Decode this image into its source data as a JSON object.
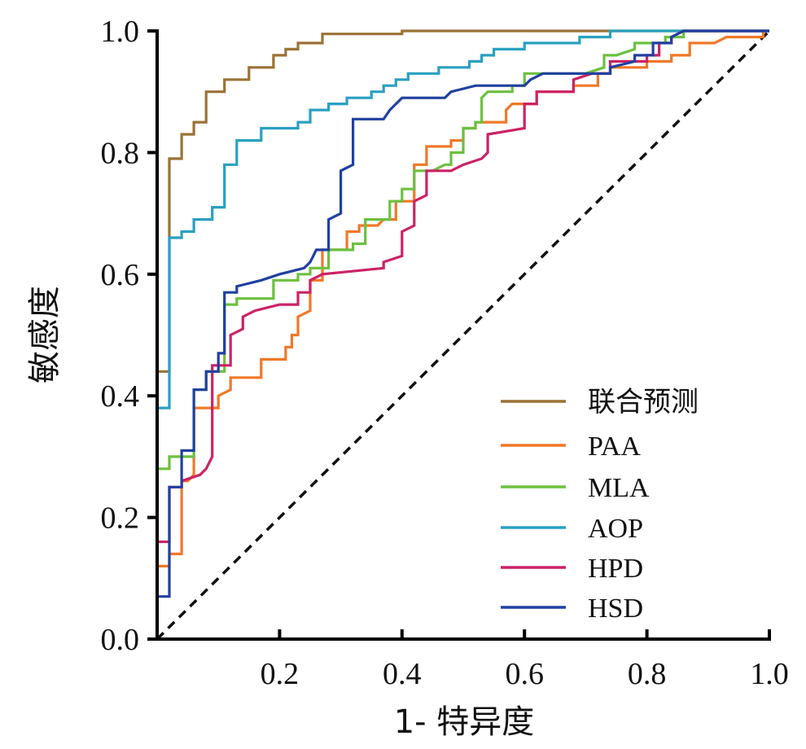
{
  "chart_data": {
    "type": "line",
    "title": "",
    "xlabel": "1- 特异度",
    "ylabel": "敏感度",
    "xlim": [
      0,
      1
    ],
    "ylim": [
      0,
      1
    ],
    "x_ticks": [
      "0.2",
      "0.4",
      "0.6",
      "0.8",
      "1.0"
    ],
    "y_ticks": [
      "0.0",
      "0.2",
      "0.4",
      "0.6",
      "0.8",
      "1.0"
    ],
    "grid": false,
    "legend_position": "bottom-right",
    "reference_line": {
      "style": "dashed",
      "color": "#111111",
      "points": [
        [
          0,
          0
        ],
        [
          1,
          1
        ]
      ]
    },
    "series": [
      {
        "name": "联合预测",
        "color": "#9a7236",
        "points": [
          [
            0,
            0
          ],
          [
            0,
            0.44
          ],
          [
            0.02,
            0.44
          ],
          [
            0.02,
            0.79
          ],
          [
            0.04,
            0.79
          ],
          [
            0.04,
            0.83
          ],
          [
            0.06,
            0.83
          ],
          [
            0.06,
            0.85
          ],
          [
            0.08,
            0.85
          ],
          [
            0.08,
            0.9
          ],
          [
            0.11,
            0.9
          ],
          [
            0.11,
            0.92
          ],
          [
            0.15,
            0.92
          ],
          [
            0.15,
            0.94
          ],
          [
            0.19,
            0.94
          ],
          [
            0.19,
            0.96
          ],
          [
            0.21,
            0.96
          ],
          [
            0.21,
            0.97
          ],
          [
            0.23,
            0.97
          ],
          [
            0.23,
            0.98
          ],
          [
            0.27,
            0.98
          ],
          [
            0.27,
            0.995
          ],
          [
            0.4,
            0.995
          ],
          [
            0.4,
            1
          ],
          [
            1,
            1
          ]
        ]
      },
      {
        "name": "PAA",
        "color": "#f07828",
        "points": [
          [
            0,
            0
          ],
          [
            0,
            0.12
          ],
          [
            0.02,
            0.12
          ],
          [
            0.02,
            0.14
          ],
          [
            0.04,
            0.14
          ],
          [
            0.04,
            0.26
          ],
          [
            0.05,
            0.26
          ],
          [
            0.06,
            0.27
          ],
          [
            0.06,
            0.38
          ],
          [
            0.1,
            0.38
          ],
          [
            0.1,
            0.4
          ],
          [
            0.12,
            0.41
          ],
          [
            0.12,
            0.43
          ],
          [
            0.17,
            0.43
          ],
          [
            0.17,
            0.46
          ],
          [
            0.21,
            0.46
          ],
          [
            0.21,
            0.48
          ],
          [
            0.22,
            0.48
          ],
          [
            0.22,
            0.5
          ],
          [
            0.23,
            0.5
          ],
          [
            0.23,
            0.53
          ],
          [
            0.25,
            0.54
          ],
          [
            0.25,
            0.59
          ],
          [
            0.27,
            0.59
          ],
          [
            0.27,
            0.64
          ],
          [
            0.31,
            0.64
          ],
          [
            0.31,
            0.67
          ],
          [
            0.33,
            0.67
          ],
          [
            0.33,
            0.68
          ],
          [
            0.36,
            0.68
          ],
          [
            0.37,
            0.69
          ],
          [
            0.39,
            0.69
          ],
          [
            0.39,
            0.72
          ],
          [
            0.42,
            0.72
          ],
          [
            0.42,
            0.78
          ],
          [
            0.44,
            0.78
          ],
          [
            0.44,
            0.81
          ],
          [
            0.48,
            0.81
          ],
          [
            0.48,
            0.82
          ],
          [
            0.5,
            0.82
          ],
          [
            0.5,
            0.84
          ],
          [
            0.52,
            0.84
          ],
          [
            0.52,
            0.85
          ],
          [
            0.57,
            0.85
          ],
          [
            0.57,
            0.87
          ],
          [
            0.58,
            0.88
          ],
          [
            0.62,
            0.88
          ],
          [
            0.62,
            0.9
          ],
          [
            0.68,
            0.9
          ],
          [
            0.68,
            0.91
          ],
          [
            0.72,
            0.91
          ],
          [
            0.72,
            0.93
          ],
          [
            0.74,
            0.93
          ],
          [
            0.74,
            0.94
          ],
          [
            0.8,
            0.94
          ],
          [
            0.8,
            0.95
          ],
          [
            0.84,
            0.95
          ],
          [
            0.84,
            0.96
          ],
          [
            0.87,
            0.96
          ],
          [
            0.87,
            0.98
          ],
          [
            0.91,
            0.98
          ],
          [
            0.93,
            0.99
          ],
          [
            0.99,
            0.99
          ],
          [
            0.99,
            1
          ],
          [
            1,
            1
          ]
        ]
      },
      {
        "name": "MLA",
        "color": "#6cc040",
        "points": [
          [
            0,
            0
          ],
          [
            0,
            0.28
          ],
          [
            0.02,
            0.28
          ],
          [
            0.02,
            0.3
          ],
          [
            0.06,
            0.3
          ],
          [
            0.06,
            0.41
          ],
          [
            0.08,
            0.41
          ],
          [
            0.08,
            0.44
          ],
          [
            0.11,
            0.44
          ],
          [
            0.11,
            0.55
          ],
          [
            0.13,
            0.55
          ],
          [
            0.13,
            0.56
          ],
          [
            0.19,
            0.56
          ],
          [
            0.19,
            0.59
          ],
          [
            0.23,
            0.59
          ],
          [
            0.23,
            0.6
          ],
          [
            0.25,
            0.6
          ],
          [
            0.25,
            0.61
          ],
          [
            0.28,
            0.61
          ],
          [
            0.28,
            0.64
          ],
          [
            0.32,
            0.64
          ],
          [
            0.32,
            0.65
          ],
          [
            0.34,
            0.65
          ],
          [
            0.34,
            0.69
          ],
          [
            0.38,
            0.69
          ],
          [
            0.38,
            0.72
          ],
          [
            0.4,
            0.72
          ],
          [
            0.4,
            0.74
          ],
          [
            0.42,
            0.74
          ],
          [
            0.42,
            0.77
          ],
          [
            0.45,
            0.77
          ],
          [
            0.47,
            0.78
          ],
          [
            0.48,
            0.78
          ],
          [
            0.48,
            0.8
          ],
          [
            0.5,
            0.8
          ],
          [
            0.5,
            0.84
          ],
          [
            0.52,
            0.84
          ],
          [
            0.52,
            0.85
          ],
          [
            0.53,
            0.85
          ],
          [
            0.53,
            0.89
          ],
          [
            0.54,
            0.9
          ],
          [
            0.58,
            0.9
          ],
          [
            0.58,
            0.91
          ],
          [
            0.6,
            0.91
          ],
          [
            0.6,
            0.93
          ],
          [
            0.7,
            0.93
          ],
          [
            0.73,
            0.94
          ],
          [
            0.73,
            0.96
          ],
          [
            0.75,
            0.96
          ],
          [
            0.78,
            0.97
          ],
          [
            0.78,
            0.98
          ],
          [
            0.83,
            0.98
          ],
          [
            0.83,
            0.99
          ],
          [
            0.86,
            0.99
          ],
          [
            0.86,
            1
          ],
          [
            1,
            1
          ]
        ]
      },
      {
        "name": "AOP",
        "color": "#2aa0c0",
        "points": [
          [
            0,
            0
          ],
          [
            0,
            0.38
          ],
          [
            0.02,
            0.38
          ],
          [
            0.02,
            0.66
          ],
          [
            0.04,
            0.66
          ],
          [
            0.04,
            0.67
          ],
          [
            0.06,
            0.67
          ],
          [
            0.06,
            0.69
          ],
          [
            0.09,
            0.69
          ],
          [
            0.09,
            0.71
          ],
          [
            0.11,
            0.71
          ],
          [
            0.11,
            0.78
          ],
          [
            0.13,
            0.78
          ],
          [
            0.13,
            0.82
          ],
          [
            0.17,
            0.82
          ],
          [
            0.17,
            0.84
          ],
          [
            0.23,
            0.84
          ],
          [
            0.23,
            0.85
          ],
          [
            0.25,
            0.85
          ],
          [
            0.25,
            0.87
          ],
          [
            0.28,
            0.87
          ],
          [
            0.28,
            0.88
          ],
          [
            0.31,
            0.88
          ],
          [
            0.31,
            0.89
          ],
          [
            0.35,
            0.89
          ],
          [
            0.35,
            0.9
          ],
          [
            0.37,
            0.9
          ],
          [
            0.37,
            0.91
          ],
          [
            0.39,
            0.91
          ],
          [
            0.39,
            0.92
          ],
          [
            0.41,
            0.92
          ],
          [
            0.41,
            0.93
          ],
          [
            0.46,
            0.93
          ],
          [
            0.46,
            0.94
          ],
          [
            0.51,
            0.94
          ],
          [
            0.51,
            0.95
          ],
          [
            0.53,
            0.95
          ],
          [
            0.53,
            0.96
          ],
          [
            0.55,
            0.96
          ],
          [
            0.55,
            0.97
          ],
          [
            0.6,
            0.97
          ],
          [
            0.6,
            0.98
          ],
          [
            0.69,
            0.98
          ],
          [
            0.69,
            0.99
          ],
          [
            0.74,
            0.99
          ],
          [
            0.74,
            1
          ],
          [
            1,
            1
          ]
        ]
      },
      {
        "name": "HPD",
        "color": "#cc2266",
        "points": [
          [
            0,
            0
          ],
          [
            0,
            0.16
          ],
          [
            0.02,
            0.16
          ],
          [
            0.02,
            0.25
          ],
          [
            0.04,
            0.25
          ],
          [
            0.04,
            0.26
          ],
          [
            0.07,
            0.27
          ],
          [
            0.08,
            0.28
          ],
          [
            0.09,
            0.3
          ],
          [
            0.09,
            0.45
          ],
          [
            0.12,
            0.45
          ],
          [
            0.12,
            0.5
          ],
          [
            0.14,
            0.51
          ],
          [
            0.14,
            0.53
          ],
          [
            0.16,
            0.54
          ],
          [
            0.2,
            0.55
          ],
          [
            0.23,
            0.55
          ],
          [
            0.23,
            0.57
          ],
          [
            0.25,
            0.57
          ],
          [
            0.25,
            0.59
          ],
          [
            0.27,
            0.6
          ],
          [
            0.37,
            0.61
          ],
          [
            0.37,
            0.62
          ],
          [
            0.4,
            0.63
          ],
          [
            0.4,
            0.67
          ],
          [
            0.42,
            0.68
          ],
          [
            0.42,
            0.72
          ],
          [
            0.44,
            0.73
          ],
          [
            0.44,
            0.77
          ],
          [
            0.48,
            0.77
          ],
          [
            0.5,
            0.78
          ],
          [
            0.53,
            0.79
          ],
          [
            0.54,
            0.8
          ],
          [
            0.54,
            0.83
          ],
          [
            0.6,
            0.84
          ],
          [
            0.6,
            0.88
          ],
          [
            0.62,
            0.88
          ],
          [
            0.62,
            0.9
          ],
          [
            0.68,
            0.9
          ],
          [
            0.68,
            0.92
          ],
          [
            0.71,
            0.93
          ],
          [
            0.74,
            0.93
          ],
          [
            0.74,
            0.95
          ],
          [
            0.8,
            0.95
          ],
          [
            0.8,
            0.96
          ],
          [
            0.82,
            0.96
          ],
          [
            0.82,
            0.98
          ],
          [
            0.84,
            0.98
          ],
          [
            0.84,
            0.99
          ],
          [
            0.86,
            1
          ],
          [
            1,
            1
          ]
        ]
      },
      {
        "name": "HSD",
        "color": "#2040a0",
        "points": [
          [
            0,
            0
          ],
          [
            0,
            0.07
          ],
          [
            0.02,
            0.07
          ],
          [
            0.02,
            0.25
          ],
          [
            0.04,
            0.25
          ],
          [
            0.04,
            0.31
          ],
          [
            0.06,
            0.31
          ],
          [
            0.06,
            0.41
          ],
          [
            0.08,
            0.41
          ],
          [
            0.08,
            0.44
          ],
          [
            0.1,
            0.44
          ],
          [
            0.1,
            0.47
          ],
          [
            0.11,
            0.47
          ],
          [
            0.11,
            0.57
          ],
          [
            0.13,
            0.57
          ],
          [
            0.13,
            0.58
          ],
          [
            0.17,
            0.59
          ],
          [
            0.2,
            0.6
          ],
          [
            0.24,
            0.61
          ],
          [
            0.25,
            0.62
          ],
          [
            0.26,
            0.64
          ],
          [
            0.28,
            0.64
          ],
          [
            0.28,
            0.69
          ],
          [
            0.3,
            0.7
          ],
          [
            0.3,
            0.77
          ],
          [
            0.32,
            0.78
          ],
          [
            0.32,
            0.855
          ],
          [
            0.37,
            0.855
          ],
          [
            0.38,
            0.87
          ],
          [
            0.4,
            0.89
          ],
          [
            0.47,
            0.89
          ],
          [
            0.48,
            0.9
          ],
          [
            0.5,
            0.905
          ],
          [
            0.52,
            0.91
          ],
          [
            0.6,
            0.91
          ],
          [
            0.61,
            0.92
          ],
          [
            0.63,
            0.93
          ],
          [
            0.74,
            0.93
          ],
          [
            0.74,
            0.94
          ],
          [
            0.78,
            0.95
          ],
          [
            0.78,
            0.96
          ],
          [
            0.81,
            0.96
          ],
          [
            0.81,
            0.98
          ],
          [
            0.84,
            0.98
          ],
          [
            0.84,
            0.99
          ],
          [
            0.86,
            1
          ],
          [
            1,
            1
          ]
        ]
      }
    ]
  }
}
